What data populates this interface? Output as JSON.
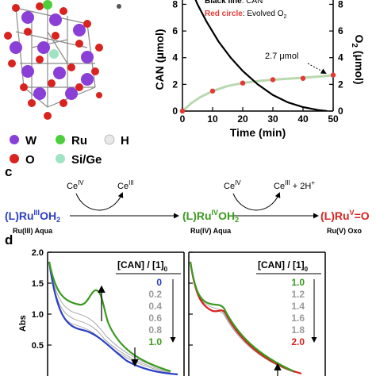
{
  "panel_a": {
    "legend": [
      {
        "symbol": "W",
        "color": "#8a3fd6"
      },
      {
        "symbol": "Ru",
        "color": "#4ccf3a"
      },
      {
        "symbol": "H",
        "color": "#e8e8e8"
      },
      {
        "symbol": "O",
        "color": "#d8231f"
      },
      {
        "symbol": "Si/Ge",
        "color": "#9fe3c4"
      }
    ]
  },
  "panel_b_note": {
    "black_label": "Black line",
    "black_text": ": CAN",
    "red_label": "Red circle",
    "red_text": ": Evolved O",
    "red_sub": "2",
    "annotation": "2.7 μmol"
  },
  "panel_c": {
    "label": "c",
    "step1_top_left": "Ce",
    "step1_top_left_sup": "IV",
    "step1_top_right": "Ce",
    "step1_top_right_sup": "III",
    "step2_top_left": "Ce",
    "step2_top_left_sup": "IV",
    "step2_top_right": "Ce",
    "step2_top_right_sup": "III",
    "step2_extra": " + 2H",
    "step2_extra_sup": "+",
    "species": [
      {
        "pre": "(L)Ru",
        "sup": "III",
        "post": "OH",
        "sub": "2",
        "name": "Ru(III) Aqua",
        "color": "#2b3fc4"
      },
      {
        "pre": "(L)Ru",
        "sup": "IV",
        "post": "OH",
        "sub": "2",
        "name": "Ru(IV) Aqua",
        "color": "#3a9a1e"
      },
      {
        "pre": "(L)Ru",
        "sup": "V",
        "post": "=O",
        "sub": "",
        "name": "Ru(V) Oxo",
        "color": "#d8231f"
      }
    ]
  },
  "panel_d": {
    "label": "d",
    "left_header": "[CAN] / [1]",
    "left_header_sub": "0",
    "right_header": "[CAN] / [1]",
    "right_header_sub": "0",
    "left_values": [
      {
        "v": "0",
        "color": "#2b3fc4"
      },
      {
        "v": "0.2",
        "color": "#9a9a9a"
      },
      {
        "v": "0.4",
        "color": "#9a9a9a"
      },
      {
        "v": "0.6",
        "color": "#9a9a9a"
      },
      {
        "v": "0.8",
        "color": "#9a9a9a"
      },
      {
        "v": "1.0",
        "color": "#3a9a1e"
      }
    ],
    "right_values": [
      {
        "v": "1.0",
        "color": "#3a9a1e"
      },
      {
        "v": "1.2",
        "color": "#9a9a9a"
      },
      {
        "v": "1.4",
        "color": "#9a9a9a"
      },
      {
        "v": "1.6",
        "color": "#9a9a9a"
      },
      {
        "v": "1.8",
        "color": "#9a9a9a"
      },
      {
        "v": "2.0",
        "color": "#d8231f"
      }
    ]
  },
  "chart_data": [
    {
      "type": "line",
      "panel": "b",
      "xlabel": "Time (min)",
      "ylabel": "CAN (μmol)",
      "y2label": "O",
      "y2label_sub": "2",
      "y2label_rest": " (μmol)",
      "xlim": [
        0,
        50
      ],
      "ylim": [
        0,
        8.8
      ],
      "x_ticks": [
        0,
        10,
        20,
        30,
        40,
        50
      ],
      "y_ticks": [
        0,
        2,
        4,
        6,
        8
      ],
      "y2_ticks": [
        0,
        2,
        4,
        6,
        8
      ],
      "series": [
        {
          "name": "CAN",
          "kind": "line",
          "color": "#000000",
          "x": [
            0,
            2,
            5,
            8,
            12,
            16,
            20,
            25,
            30,
            35,
            40,
            45,
            48
          ],
          "y": [
            11.0,
            9.6,
            8.0,
            6.7,
            5.2,
            4.0,
            3.0,
            2.0,
            1.2,
            0.65,
            0.3,
            0.08,
            0.0
          ]
        },
        {
          "name": "Evolved O2",
          "kind": "scatter",
          "color": "#e53935",
          "x": [
            0,
            10,
            20,
            30,
            40,
            50
          ],
          "y": [
            0.0,
            1.5,
            2.1,
            2.35,
            2.45,
            2.7
          ]
        },
        {
          "name": "fit",
          "kind": "line",
          "color": "#b8d9b0",
          "x": [
            0,
            3,
            6,
            10,
            15,
            20,
            25,
            30,
            35,
            40,
            45,
            50
          ],
          "y": [
            0.0,
            0.6,
            1.05,
            1.5,
            1.88,
            2.1,
            2.25,
            2.35,
            2.42,
            2.5,
            2.58,
            2.68
          ]
        }
      ]
    },
    {
      "type": "line",
      "panel": "d",
      "ylabel": "Abs",
      "ylim": [
        0,
        2.0
      ],
      "y_ticks": [
        "0.5",
        "1.0",
        "1.5",
        "2.0"
      ],
      "y_tick_values": [
        0.5,
        1.0,
        1.5,
        2.0
      ]
    }
  ]
}
